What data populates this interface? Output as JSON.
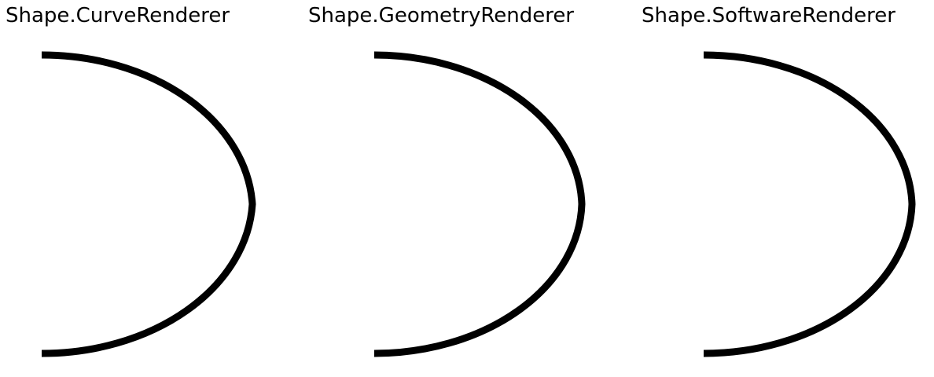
{
  "panels": [
    {
      "label": "Shape.CurveRenderer",
      "stroke_color": "#000000"
    },
    {
      "label": "Shape.GeometryRenderer",
      "stroke_color": "#000000"
    },
    {
      "label": "Shape.SoftwareRenderer",
      "stroke_color": "#000000"
    }
  ]
}
